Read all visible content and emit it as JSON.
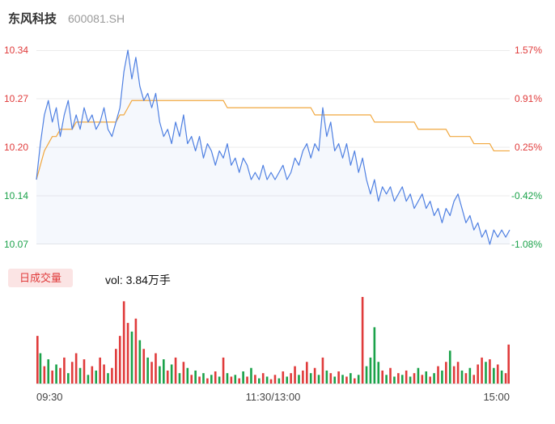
{
  "header": {
    "name": "东风科技",
    "code": "600081.SH"
  },
  "colors": {
    "up": "#e03b3b",
    "down": "#1ba24a",
    "price_line": "#4f80e2",
    "price_fill": "rgba(79,128,226,0.06)",
    "avg_line": "#f1a73e",
    "grid": "#ebebeb",
    "legend_bg": "#fbe4e4"
  },
  "price_axis": {
    "left": [
      {
        "text": "10.34",
        "trend": "up"
      },
      {
        "text": "10.27",
        "trend": "up"
      },
      {
        "text": "10.20",
        "trend": "up"
      },
      {
        "text": "10.14",
        "trend": "down"
      },
      {
        "text": "10.07",
        "trend": "down"
      }
    ],
    "right": [
      {
        "text": "1.57%",
        "trend": "up"
      },
      {
        "text": "0.91%",
        "trend": "up"
      },
      {
        "text": "0.25%",
        "trend": "up"
      },
      {
        "text": "-0.42%",
        "trend": "down"
      },
      {
        "text": "-1.08%",
        "trend": "down"
      }
    ]
  },
  "volume_panel": {
    "legend": "日成交量",
    "vol_text": "vol: 3.84万手"
  },
  "time_axis": {
    "labels": [
      "09:30",
      "11:30/13:00",
      "15:00"
    ]
  },
  "chart_data": {
    "type": "line",
    "title": "东风科技 600081.SH 分时走势",
    "x_labels": [
      "09:30",
      "11:30/13:00",
      "15:00"
    ],
    "ylim": [
      10.07,
      10.34
    ],
    "y_ticks": [
      "10.34",
      "10.27",
      "10.20",
      "10.14",
      "10.07"
    ],
    "percent_ticks": [
      "1.57%",
      "0.91%",
      "0.25%",
      "-0.42%",
      "-1.08%"
    ],
    "prev_close": 10.18,
    "grid": true,
    "total_volume": "3.84万手",
    "series": [
      {
        "name": "price",
        "values": [
          10.16,
          10.21,
          10.25,
          10.27,
          10.24,
          10.26,
          10.22,
          10.25,
          10.27,
          10.23,
          10.25,
          10.23,
          10.26,
          10.24,
          10.25,
          10.23,
          10.24,
          10.26,
          10.23,
          10.22,
          10.24,
          10.26,
          10.31,
          10.34,
          10.3,
          10.33,
          10.29,
          10.27,
          10.28,
          10.26,
          10.28,
          10.24,
          10.22,
          10.23,
          10.21,
          10.24,
          10.22,
          10.25,
          10.21,
          10.22,
          10.2,
          10.22,
          10.19,
          10.21,
          10.2,
          10.18,
          10.2,
          10.19,
          10.21,
          10.18,
          10.19,
          10.17,
          10.19,
          10.18,
          10.16,
          10.17,
          10.16,
          10.18,
          10.16,
          10.17,
          10.16,
          10.17,
          10.18,
          10.16,
          10.17,
          10.19,
          10.18,
          10.2,
          10.21,
          10.19,
          10.21,
          10.2,
          10.26,
          10.22,
          10.24,
          10.2,
          10.21,
          10.19,
          10.21,
          10.18,
          10.2,
          10.17,
          10.19,
          10.16,
          10.14,
          10.16,
          10.13,
          10.15,
          10.14,
          10.15,
          10.13,
          10.14,
          10.15,
          10.13,
          10.14,
          10.12,
          10.13,
          10.14,
          10.12,
          10.13,
          10.11,
          10.12,
          10.1,
          10.12,
          10.11,
          10.13,
          10.14,
          10.12,
          10.1,
          10.11,
          10.09,
          10.1,
          10.08,
          10.09,
          10.07,
          10.09,
          10.08,
          10.09,
          10.08,
          10.09
        ]
      },
      {
        "name": "avg",
        "values": [
          10.16,
          10.18,
          10.2,
          10.21,
          10.22,
          10.22,
          10.23,
          10.23,
          10.23,
          10.23,
          10.24,
          10.24,
          10.24,
          10.24,
          10.24,
          10.24,
          10.24,
          10.24,
          10.24,
          10.24,
          10.24,
          10.25,
          10.25,
          10.26,
          10.27,
          10.27,
          10.27,
          10.27,
          10.27,
          10.27,
          10.27,
          10.27,
          10.27,
          10.27,
          10.27,
          10.27,
          10.27,
          10.27,
          10.27,
          10.27,
          10.27,
          10.27,
          10.27,
          10.27,
          10.27,
          10.27,
          10.27,
          10.27,
          10.26,
          10.26,
          10.26,
          10.26,
          10.26,
          10.26,
          10.26,
          10.26,
          10.26,
          10.26,
          10.26,
          10.26,
          10.26,
          10.26,
          10.26,
          10.26,
          10.26,
          10.26,
          10.26,
          10.26,
          10.26,
          10.26,
          10.25,
          10.25,
          10.25,
          10.25,
          10.25,
          10.25,
          10.25,
          10.25,
          10.25,
          10.25,
          10.25,
          10.25,
          10.25,
          10.25,
          10.25,
          10.24,
          10.24,
          10.24,
          10.24,
          10.24,
          10.24,
          10.24,
          10.24,
          10.24,
          10.24,
          10.24,
          10.23,
          10.23,
          10.23,
          10.23,
          10.23,
          10.23,
          10.23,
          10.23,
          10.22,
          10.22,
          10.22,
          10.22,
          10.22,
          10.22,
          10.21,
          10.21,
          10.21,
          10.21,
          10.21,
          10.2,
          10.2,
          10.2,
          10.2,
          10.2
        ]
      }
    ],
    "volume": {
      "values": [
        55,
        35,
        20,
        28,
        15,
        22,
        18,
        30,
        12,
        25,
        35,
        18,
        28,
        10,
        20,
        15,
        30,
        22,
        12,
        18,
        40,
        55,
        95,
        70,
        60,
        75,
        50,
        40,
        30,
        25,
        35,
        20,
        28,
        15,
        22,
        30,
        12,
        25,
        18,
        10,
        15,
        8,
        12,
        6,
        10,
        14,
        8,
        30,
        12,
        8,
        10,
        6,
        14,
        8,
        18,
        10,
        6,
        12,
        8,
        5,
        10,
        6,
        14,
        8,
        12,
        20,
        10,
        15,
        25,
        12,
        18,
        10,
        30,
        15,
        12,
        8,
        14,
        10,
        8,
        12,
        6,
        10,
        100,
        20,
        30,
        65,
        25,
        15,
        10,
        18,
        8,
        12,
        10,
        15,
        8,
        12,
        18,
        10,
        14,
        8,
        12,
        20,
        15,
        25,
        38,
        20,
        25,
        15,
        12,
        18,
        10,
        22,
        30,
        25,
        28,
        18,
        22,
        15,
        12,
        45
      ],
      "colors": [
        "r",
        "g",
        "r",
        "g",
        "r",
        "g",
        "r",
        "r",
        "g",
        "r",
        "r",
        "g",
        "r",
        "g",
        "r",
        "g",
        "r",
        "r",
        "g",
        "r",
        "r",
        "r",
        "r",
        "r",
        "g",
        "r",
        "g",
        "r",
        "g",
        "r",
        "r",
        "g",
        "g",
        "r",
        "g",
        "r",
        "g",
        "r",
        "g",
        "r",
        "g",
        "r",
        "g",
        "r",
        "g",
        "r",
        "g",
        "r",
        "g",
        "r",
        "g",
        "r",
        "g",
        "r",
        "g",
        "r",
        "g",
        "r",
        "g",
        "r",
        "r",
        "g",
        "r",
        "g",
        "r",
        "r",
        "g",
        "r",
        "r",
        "g",
        "r",
        "g",
        "r",
        "g",
        "r",
        "g",
        "r",
        "g",
        "r",
        "g",
        "r",
        "g",
        "r",
        "g",
        "g",
        "g",
        "g",
        "r",
        "g",
        "r",
        "g",
        "r",
        "g",
        "r",
        "g",
        "r",
        "g",
        "r",
        "g",
        "r",
        "g",
        "r",
        "g",
        "r",
        "g",
        "r",
        "r",
        "g",
        "r",
        "g",
        "r",
        "r",
        "r",
        "g",
        "r",
        "g",
        "r",
        "g",
        "r",
        "r"
      ]
    }
  }
}
